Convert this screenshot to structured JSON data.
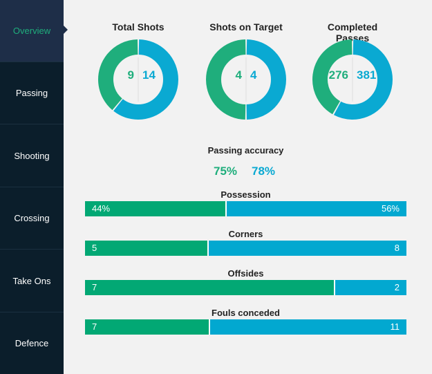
{
  "colors": {
    "home": "#1fae7c",
    "away": "#0aa9d2",
    "sidebar": "#0b1e2b",
    "active": "#1e2e48"
  },
  "sidebar": {
    "items": [
      {
        "label": "Overview",
        "active": true
      },
      {
        "label": "Passing"
      },
      {
        "label": "Shooting"
      },
      {
        "label": "Crossing"
      },
      {
        "label": "Take Ons"
      },
      {
        "label": "Defence"
      }
    ]
  },
  "donuts": [
    {
      "title": "Total Shots",
      "home": 9,
      "away": 14
    },
    {
      "title": "Shots on Target",
      "home": 4,
      "away": 4
    },
    {
      "title": "Completed Passes",
      "home": 276,
      "away": 381
    }
  ],
  "passing_accuracy": {
    "title": "Passing accuracy",
    "home": "75%",
    "away": "78%"
  },
  "bars": [
    {
      "title": "Possession",
      "home": 44,
      "away": 56,
      "home_label": "44%",
      "away_label": "56%"
    },
    {
      "title": "Corners",
      "home": 5,
      "away": 8,
      "home_label": "5",
      "away_label": "8"
    },
    {
      "title": "Offsides",
      "home": 7,
      "away": 2,
      "home_label": "7",
      "away_label": "2"
    },
    {
      "title": "Fouls conceded",
      "home": 7,
      "away": 11,
      "home_label": "7",
      "away_label": "11"
    }
  ]
}
